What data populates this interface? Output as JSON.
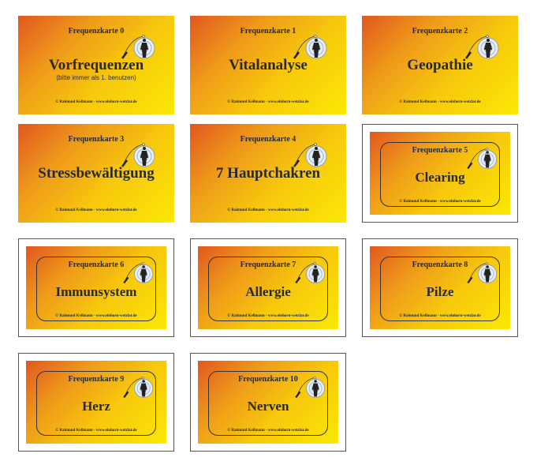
{
  "footer": "© Raimund Kellmann - www.einhorn-wetzlar.de",
  "colors": {
    "gradient_start": "#e2571f",
    "gradient_end": "#fbe805"
  },
  "cards": [
    {
      "number": "Frequenzkarte 0",
      "title": "Vorfrequenzen",
      "subtitle": "(bitte immer als 1. benutzen)",
      "framed": false
    },
    {
      "number": "Frequenzkarte 1",
      "title": "Vitalanalyse",
      "framed": false
    },
    {
      "number": "Frequenzkarte 2",
      "title": "Geopathie",
      "framed": false
    },
    {
      "number": "Frequenzkarte 3",
      "title": "Stressbewältigung",
      "framed": false
    },
    {
      "number": "Frequenzkarte 4",
      "title": "7 Hauptchakren",
      "framed": false
    },
    {
      "number": "Frequenzkarte 5",
      "title": "Clearing",
      "framed": true
    },
    {
      "number": "Frequenzkarte 6",
      "title": "Immunsystem",
      "framed": true
    },
    {
      "number": "Frequenzkarte 7",
      "title": "Allergie",
      "framed": true
    },
    {
      "number": "Frequenzkarte 8",
      "title": "Pilze",
      "framed": true
    },
    {
      "number": "Frequenzkarte 9",
      "title": "Herz",
      "framed": true
    },
    {
      "number": "Frequenzkarte 10",
      "title": "Nerven",
      "framed": true
    }
  ]
}
